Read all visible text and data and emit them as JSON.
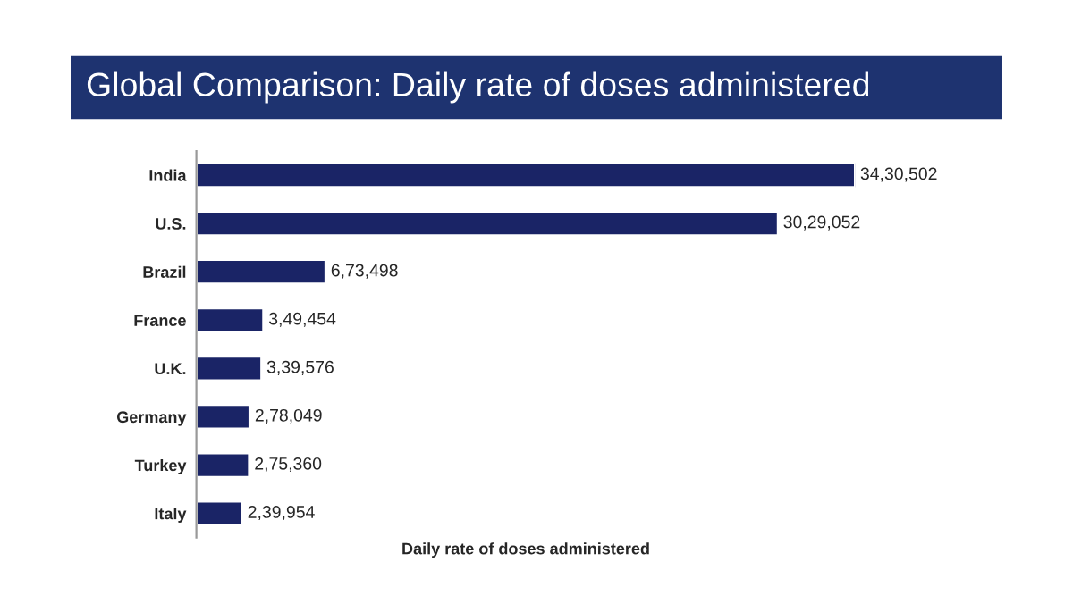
{
  "chart_data": {
    "type": "bar",
    "orientation": "horizontal",
    "title": "Global Comparison: Daily rate of doses administered",
    "xlabel": "Daily rate of doses administered",
    "categories": [
      "India",
      "U.S.",
      "Brazil",
      "France",
      "U.K.",
      "Germany",
      "Turkey",
      "Italy"
    ],
    "values": [
      3430502,
      3029052,
      673498,
      349454,
      339576,
      278049,
      275360,
      239954
    ],
    "value_labels": [
      "34,30,502",
      "30,29,052",
      "6,73,498",
      "3,49,454",
      "3,39,576",
      "2,78,049",
      "2,75,360",
      "2,39,954"
    ],
    "color": "#1a2466",
    "grid": false,
    "legend": false
  }
}
